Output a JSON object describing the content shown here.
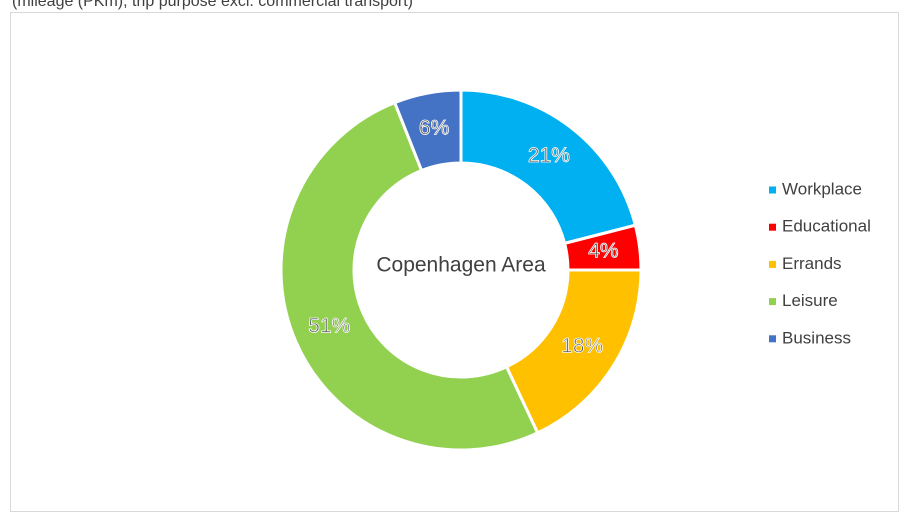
{
  "chart_data": {
    "type": "donut",
    "title": "(mileage (PKm), trip purpose excl. commercial transport)",
    "center_label": "Copenhagen Area",
    "categories": [
      "Workplace",
      "Educational",
      "Errands",
      "Leisure",
      "Business"
    ],
    "values": [
      21,
      4,
      18,
      51,
      6
    ],
    "value_labels": [
      "21%",
      "4%",
      "18%",
      "51%",
      "6%"
    ],
    "colors": [
      "#00b0f0",
      "#ff0000",
      "#ffc000",
      "#92d050",
      "#4472c4"
    ],
    "legend": "right"
  }
}
